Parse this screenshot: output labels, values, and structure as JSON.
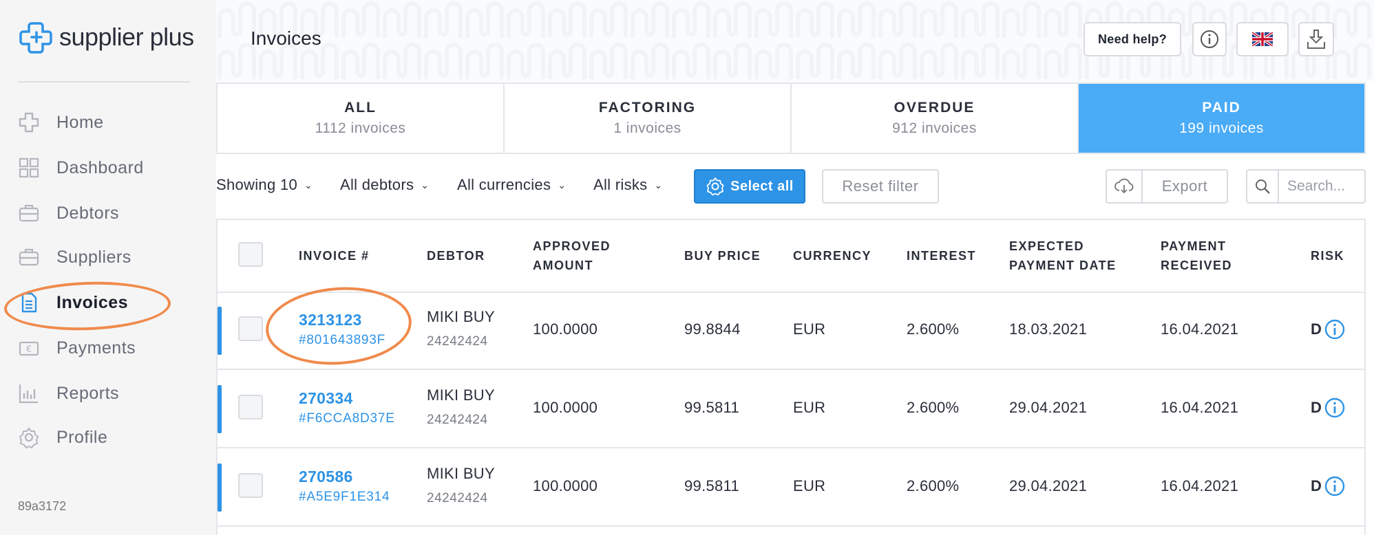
{
  "brand": {
    "name": "supplier plus",
    "accent": "#2d93e6"
  },
  "sidebar": {
    "items": [
      {
        "label": "Home",
        "icon": "home-icon"
      },
      {
        "label": "Dashboard",
        "icon": "dashboard-icon"
      },
      {
        "label": "Debtors",
        "icon": "debtors-icon"
      },
      {
        "label": "Suppliers",
        "icon": "suppliers-icon"
      },
      {
        "label": "Invoices",
        "icon": "invoices-icon",
        "active": true
      },
      {
        "label": "Payments",
        "icon": "payments-icon"
      },
      {
        "label": "Reports",
        "icon": "reports-icon"
      },
      {
        "label": "Profile",
        "icon": "profile-icon"
      }
    ],
    "version": "89a3172"
  },
  "header": {
    "title": "Invoices",
    "help_label": "Need help?"
  },
  "tabs": [
    {
      "name": "ALL",
      "count": "1112 invoices"
    },
    {
      "name": "FACTORING",
      "count": "1 invoices"
    },
    {
      "name": "OVERDUE",
      "count": "912 invoices"
    },
    {
      "name": "PAID",
      "count": "199 invoices",
      "active": true
    }
  ],
  "filters": {
    "showing": "Showing 10",
    "debtors": "All debtors",
    "currencies": "All currencies",
    "risks": "All risks",
    "select_all": "Select all",
    "reset": "Reset filter",
    "export": "Export",
    "search_placeholder": "Search..."
  },
  "table": {
    "headers": {
      "invoice": "INVOICE #",
      "debtor": "DEBTOR",
      "approved_1": "APPROVED",
      "approved_2": "AMOUNT",
      "buy_price": "BUY PRICE",
      "currency": "CURRENCY",
      "interest": "INTEREST",
      "expected_1": "EXPECTED",
      "expected_2": "PAYMENT DATE",
      "payment_1": "PAYMENT",
      "payment_2": "RECEIVED",
      "risk": "RISK"
    },
    "rows": [
      {
        "invoice_no": "3213123",
        "invoice_hash": "#801643893F",
        "debtor": "MIKI BUY",
        "debtor_id": "24242424",
        "approved_amount": "100.0000",
        "buy_price": "99.8844",
        "currency": "EUR",
        "interest": "2.600%",
        "expected_date": "18.03.2021",
        "payment_received": "16.04.2021",
        "risk": "D"
      },
      {
        "invoice_no": "270334",
        "invoice_hash": "#F6CCA8D37E",
        "debtor": "MIKI BUY",
        "debtor_id": "24242424",
        "approved_amount": "100.0000",
        "buy_price": "99.5811",
        "currency": "EUR",
        "interest": "2.600%",
        "expected_date": "29.04.2021",
        "payment_received": "16.04.2021",
        "risk": "D"
      },
      {
        "invoice_no": "270586",
        "invoice_hash": "#A5E9F1E314",
        "debtor": "MIKI BUY",
        "debtor_id": "24242424",
        "approved_amount": "100.0000",
        "buy_price": "99.5811",
        "currency": "EUR",
        "interest": "2.600%",
        "expected_date": "29.04.2021",
        "payment_received": "16.04.2021",
        "risk": "D"
      }
    ]
  }
}
